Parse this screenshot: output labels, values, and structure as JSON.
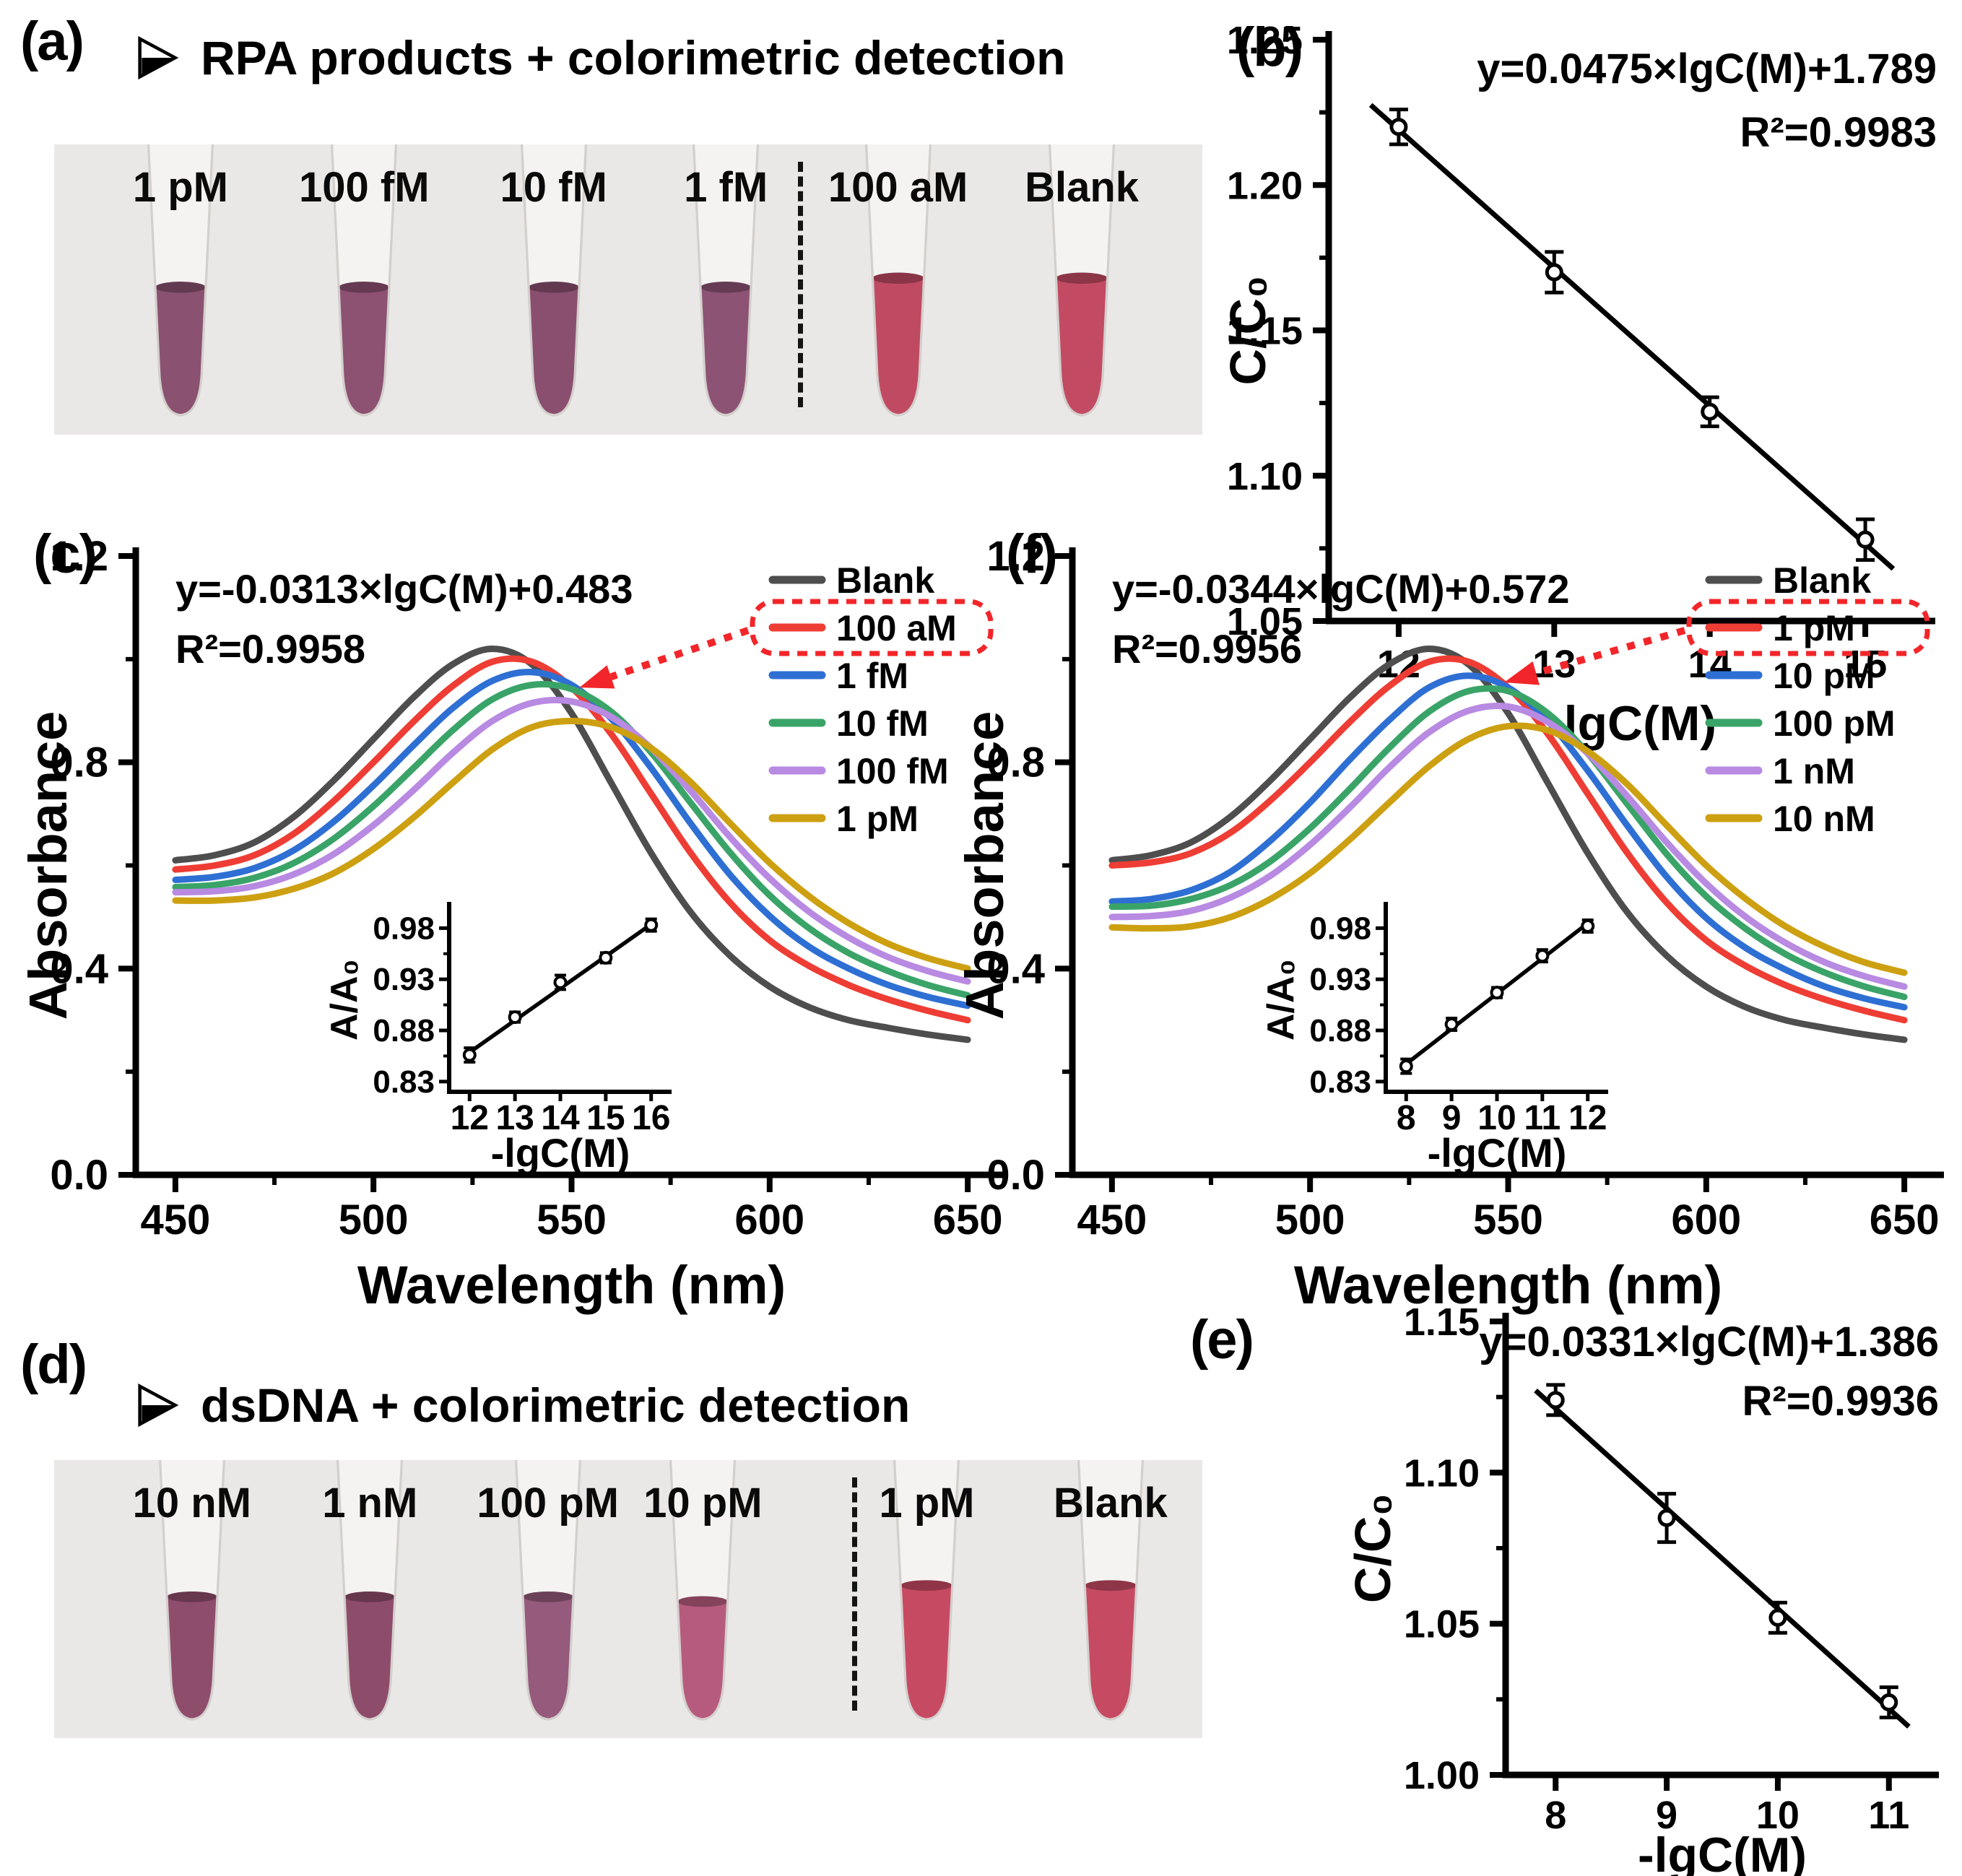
{
  "figure": {
    "background": "#ffffff",
    "accent_red": "#f2262a",
    "axis_color": "#000000"
  },
  "panels": {
    "a": {
      "panel_label": "(a)",
      "title": "RPA products + colorimetric detection",
      "bullet_icon": "right-arrowhead",
      "photo_background": "#eae8e6",
      "tubes": [
        {
          "label": "1 pM",
          "color": "#8a5270"
        },
        {
          "label": "100 fM",
          "color": "#8d5172"
        },
        {
          "label": "10 fM",
          "color": "#8a4f6f"
        },
        {
          "label": "1 fM",
          "color": "#8d5374"
        },
        {
          "label": "100 aM",
          "color": "#c04a62"
        },
        {
          "label": "Blank",
          "color": "#c24b63"
        }
      ],
      "positions_pct": [
        11,
        27,
        43.5,
        58.5,
        73.5,
        89.5
      ],
      "fill_tops": [
        205,
        205,
        205,
        205,
        192,
        192
      ],
      "divider_pct": 64.8
    },
    "b": {
      "panel_label": "(b)"
    },
    "c": {
      "panel_label": "(c)"
    },
    "d": {
      "panel_label": "(d)",
      "title": "dsDNA + colorimetric detection",
      "bullet_icon": "right-arrowhead",
      "photo_background": "#eae8e6",
      "tubes": [
        {
          "label": "10 nM",
          "color": "#8f4d6c"
        },
        {
          "label": "1 nM",
          "color": "#8e4c6b"
        },
        {
          "label": "100 pM",
          "color": "#955a7c"
        },
        {
          "label": "10 pM",
          "color": "#b75b7e"
        },
        {
          "label": "1 pM",
          "color": "#c74a63"
        },
        {
          "label": "Blank",
          "color": "#c54a62"
        }
      ],
      "positions_pct": [
        12,
        27.5,
        43,
        56.5,
        76,
        92
      ],
      "fill_tops": [
        205,
        205,
        205,
        212,
        188,
        188
      ],
      "divider_pct": 69.5
    },
    "e": {
      "panel_label": "(e)"
    },
    "f": {
      "panel_label": "(f)"
    }
  },
  "chart_data": [
    {
      "id": "b",
      "type": "scatter",
      "title": "",
      "xlabel": "-lgC(M)",
      "ylabel": "C/C₀",
      "equation": "y=0.0475×lgC(M)+1.789",
      "r_squared": "R²=0.9983",
      "x": [
        12,
        13,
        14,
        15
      ],
      "y": [
        1.22,
        1.17,
        1.122,
        1.078
      ],
      "y_err": [
        0.006,
        0.007,
        0.005,
        0.007
      ],
      "fit": {
        "m": -0.0475,
        "b": 1.789,
        "x_start": 11.82,
        "x_end": 15.18
      },
      "xlim": [
        11.55,
        15.45
      ],
      "ylim": [
        1.05,
        1.25
      ],
      "xticks": [
        12,
        13,
        14,
        15
      ],
      "xtick_labels": [
        "12",
        "13",
        "14",
        "15"
      ],
      "yticks": [
        1.05,
        1.1,
        1.15,
        1.2,
        1.25
      ],
      "ytick_labels": [
        "1.05",
        "1.10",
        "1.15",
        "1.20",
        "1.25"
      ],
      "yminor": [
        1.075,
        1.125,
        1.175,
        1.225
      ],
      "grid": false,
      "marker": "open-circle"
    },
    {
      "id": "e",
      "type": "scatter",
      "title": "",
      "xlabel": "-lgC(M)",
      "ylabel": "C/C₀",
      "equation": "y=0.0331×lgC(M)+1.386",
      "r_squared": "R²=0.9936",
      "x": [
        8,
        9,
        10,
        11
      ],
      "y": [
        1.124,
        1.085,
        1.052,
        1.024
      ],
      "y_err": [
        0.005,
        0.008,
        0.005,
        0.005
      ],
      "fit": {
        "m": -0.0331,
        "b": 1.386,
        "x_start": 7.82,
        "x_end": 11.18
      },
      "xlim": [
        7.55,
        11.45
      ],
      "ylim": [
        1.0,
        1.15
      ],
      "xticks": [
        8,
        9,
        10,
        11
      ],
      "xtick_labels": [
        "8",
        "9",
        "10",
        "11"
      ],
      "yticks": [
        1.0,
        1.05,
        1.1,
        1.15
      ],
      "ytick_labels": [
        "1.00",
        "1.05",
        "1.10",
        "1.15"
      ],
      "yminor": [
        1.025,
        1.075,
        1.125
      ],
      "grid": false,
      "marker": "open-circle"
    },
    {
      "id": "c",
      "type": "line",
      "title": "",
      "xlabel": "Wavelength (nm)",
      "ylabel": "Absorbance",
      "equation": "y=-0.0313×lgC(M)+0.483",
      "r_squared": "R²=0.9958",
      "xlim": [
        440,
        660
      ],
      "ylim": [
        0,
        1.2
      ],
      "xticks": [
        450,
        500,
        550,
        600,
        650
      ],
      "xtick_labels": [
        "450",
        "500",
        "550",
        "600",
        "650"
      ],
      "xminor": [
        475,
        525,
        575,
        625
      ],
      "yticks": [
        0,
        0.4,
        0.8,
        1.2
      ],
      "ytick_labels": [
        "0.0",
        "0.4",
        "0.8",
        "1.2"
      ],
      "yminor": [
        0.2,
        0.6,
        1.0
      ],
      "legend_position": "right",
      "legend_highlight_index": 1,
      "arrow_target": {
        "x_nm": 552,
        "abs": 0.945
      },
      "x_nm": [
        450,
        460,
        470,
        480,
        490,
        500,
        510,
        520,
        530,
        540,
        550,
        560,
        570,
        580,
        590,
        600,
        610,
        620,
        630,
        640,
        650
      ],
      "series": [
        {
          "name": "Blank",
          "color": "#4e4e4e",
          "values": [
            0.61,
            0.62,
            0.645,
            0.695,
            0.765,
            0.845,
            0.925,
            0.99,
            1.02,
            0.99,
            0.895,
            0.76,
            0.625,
            0.51,
            0.425,
            0.365,
            0.325,
            0.3,
            0.285,
            0.272,
            0.262
          ]
        },
        {
          "name": "100 aM",
          "color": "#ee3d34",
          "values": [
            0.592,
            0.6,
            0.62,
            0.662,
            0.725,
            0.8,
            0.878,
            0.948,
            0.995,
            0.995,
            0.945,
            0.855,
            0.74,
            0.625,
            0.528,
            0.455,
            0.405,
            0.368,
            0.34,
            0.318,
            0.3
          ]
        },
        {
          "name": "1 fM",
          "color": "#2e6fd4",
          "values": [
            0.572,
            0.578,
            0.595,
            0.63,
            0.685,
            0.755,
            0.832,
            0.905,
            0.958,
            0.975,
            0.95,
            0.885,
            0.79,
            0.682,
            0.582,
            0.502,
            0.442,
            0.4,
            0.368,
            0.345,
            0.328
          ]
        },
        {
          "name": "10 fM",
          "color": "#3aa468",
          "values": [
            0.558,
            0.562,
            0.576,
            0.605,
            0.652,
            0.715,
            0.788,
            0.862,
            0.922,
            0.95,
            0.942,
            0.898,
            0.82,
            0.722,
            0.625,
            0.542,
            0.478,
            0.43,
            0.395,
            0.368,
            0.348
          ]
        },
        {
          "name": "100 fM",
          "color": "#b88ae2",
          "values": [
            0.548,
            0.55,
            0.56,
            0.583,
            0.622,
            0.678,
            0.745,
            0.818,
            0.88,
            0.915,
            0.918,
            0.888,
            0.828,
            0.745,
            0.655,
            0.575,
            0.51,
            0.46,
            0.422,
            0.395,
            0.375
          ]
        },
        {
          "name": "1 pM",
          "color": "#cda012",
          "values": [
            0.532,
            0.532,
            0.538,
            0.555,
            0.585,
            0.632,
            0.692,
            0.76,
            0.825,
            0.868,
            0.88,
            0.868,
            0.828,
            0.762,
            0.682,
            0.605,
            0.54,
            0.488,
            0.448,
            0.42,
            0.4
          ]
        }
      ],
      "inset": {
        "type": "scatter",
        "xlabel": "-lgC(M)",
        "ylabel": "A/A₀",
        "x": [
          12,
          13,
          14,
          15,
          16
        ],
        "y": [
          0.856,
          0.893,
          0.927,
          0.951,
          0.983
        ],
        "y_err": [
          0.007,
          0.005,
          0.007,
          0.005,
          0.006
        ],
        "fit": {
          "m": 0.0313,
          "b": 0.483
        },
        "xlim": [
          11.55,
          16.45
        ],
        "ylim": [
          0.82,
          1.0
        ],
        "xticks": [
          12,
          13,
          14,
          15,
          16
        ],
        "xtick_labels": [
          "12",
          "13",
          "14",
          "15",
          "16"
        ],
        "yticks": [
          0.83,
          0.88,
          0.93,
          0.98
        ],
        "ytick_labels": [
          "0.83",
          "0.88",
          "0.93",
          "0.98"
        ],
        "yminor": [
          0.855,
          0.905,
          0.955
        ]
      }
    },
    {
      "id": "f",
      "type": "line",
      "title": "",
      "xlabel": "Wavelength (nm)",
      "ylabel": "Absorbance",
      "equation": "y=-0.0344×lgC(M)+0.572",
      "r_squared": "R²=0.9956",
      "xlim": [
        440,
        660
      ],
      "ylim": [
        0,
        1.2
      ],
      "xticks": [
        450,
        500,
        550,
        600,
        650
      ],
      "xtick_labels": [
        "450",
        "500",
        "550",
        "600",
        "650"
      ],
      "xminor": [
        475,
        525,
        575,
        625
      ],
      "yticks": [
        0,
        0.4,
        0.8,
        1.2
      ],
      "ytick_labels": [
        "0.0",
        "0.4",
        "0.8",
        "1.2"
      ],
      "yminor": [
        0.2,
        0.6,
        1.0
      ],
      "legend_position": "right",
      "legend_highlight_index": 1,
      "arrow_target": {
        "x_nm": 549,
        "abs": 0.955
      },
      "x_nm": [
        450,
        460,
        470,
        480,
        490,
        500,
        510,
        520,
        530,
        540,
        550,
        560,
        570,
        580,
        590,
        600,
        610,
        620,
        630,
        640,
        650
      ],
      "series": [
        {
          "name": "Blank",
          "color": "#4e4e4e",
          "values": [
            0.61,
            0.62,
            0.645,
            0.695,
            0.765,
            0.845,
            0.925,
            0.99,
            1.02,
            0.99,
            0.895,
            0.76,
            0.625,
            0.51,
            0.425,
            0.365,
            0.325,
            0.3,
            0.285,
            0.272,
            0.262
          ]
        },
        {
          "name": "1 pM",
          "color": "#ee3d34",
          "values": [
            0.6,
            0.606,
            0.624,
            0.664,
            0.726,
            0.8,
            0.878,
            0.948,
            0.995,
            0.995,
            0.945,
            0.855,
            0.74,
            0.625,
            0.528,
            0.455,
            0.405,
            0.368,
            0.34,
            0.318,
            0.3
          ]
        },
        {
          "name": "10 pM",
          "color": "#2e6fd4",
          "values": [
            0.53,
            0.535,
            0.552,
            0.588,
            0.648,
            0.722,
            0.805,
            0.882,
            0.945,
            0.968,
            0.945,
            0.88,
            0.785,
            0.678,
            0.578,
            0.498,
            0.44,
            0.398,
            0.365,
            0.342,
            0.325
          ]
        },
        {
          "name": "100 pM",
          "color": "#3aa468",
          "values": [
            0.52,
            0.522,
            0.535,
            0.562,
            0.608,
            0.672,
            0.748,
            0.828,
            0.898,
            0.938,
            0.938,
            0.895,
            0.818,
            0.72,
            0.622,
            0.54,
            0.477,
            0.428,
            0.392,
            0.365,
            0.345
          ]
        },
        {
          "name": "1 nM",
          "color": "#b88ae2",
          "values": [
            0.5,
            0.502,
            0.512,
            0.538,
            0.58,
            0.64,
            0.712,
            0.79,
            0.858,
            0.9,
            0.908,
            0.878,
            0.818,
            0.735,
            0.645,
            0.565,
            0.5,
            0.45,
            0.412,
            0.385,
            0.365
          ]
        },
        {
          "name": "10 nM",
          "color": "#cda012",
          "values": [
            0.48,
            0.478,
            0.482,
            0.5,
            0.535,
            0.585,
            0.65,
            0.722,
            0.792,
            0.845,
            0.87,
            0.862,
            0.822,
            0.758,
            0.678,
            0.6,
            0.535,
            0.482,
            0.442,
            0.412,
            0.392
          ]
        }
      ],
      "inset": {
        "type": "scatter",
        "xlabel": "-lgC(M)",
        "ylabel": "A/A₀",
        "x": [
          8,
          9,
          10,
          11,
          12
        ],
        "y": [
          0.845,
          0.886,
          0.917,
          0.953,
          0.982
        ],
        "y_err": [
          0.007,
          0.006,
          0.005,
          0.006,
          0.006
        ],
        "fit": {
          "m": 0.0344,
          "b": 0.572
        },
        "xlim": [
          7.55,
          12.45
        ],
        "xticks": [
          8,
          9,
          10,
          11,
          12
        ],
        "xtick_labels": [
          "8",
          "9",
          "10",
          "11",
          "12"
        ],
        "ylim": [
          0.82,
          1.0
        ],
        "yticks": [
          0.83,
          0.88,
          0.93,
          0.98
        ],
        "ytick_labels": [
          "0.83",
          "0.88",
          "0.93",
          "0.98"
        ],
        "yminor": [
          0.855,
          0.905,
          0.955
        ]
      }
    }
  ]
}
